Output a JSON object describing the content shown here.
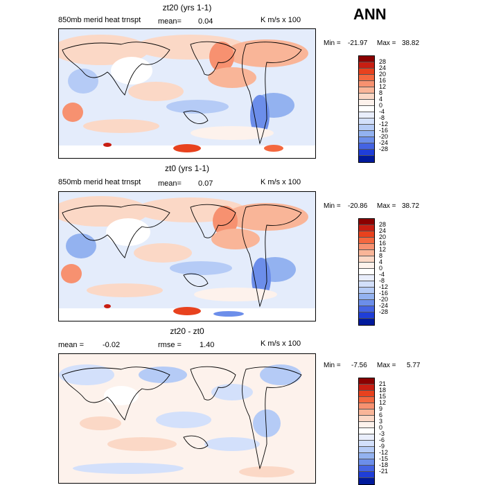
{
  "season": "ANN",
  "colors": {
    "bar28": [
      "#8b0000",
      "#c81e12",
      "#e8421e",
      "#f4683f",
      "#f79170",
      "#f9b598",
      "#fbd8c6",
      "#fdf2ec",
      "#ffffff",
      "#e9eefc",
      "#d3e0fb",
      "#b5cbf6",
      "#93b2f0",
      "#6c8eea",
      "#4463e3",
      "#1f3ed8",
      "#001a9c"
    ],
    "bar21": [
      "#8b0000",
      "#c81e12",
      "#e8421e",
      "#f4683f",
      "#f79170",
      "#f9b598",
      "#fbd8c6",
      "#fdf2ec",
      "#ffffff",
      "#e9eefc",
      "#d3e0fb",
      "#b5cbf6",
      "#93b2f0",
      "#6c8eea",
      "#4463e3",
      "#1f3ed8",
      "#001a9c"
    ]
  },
  "panels": [
    {
      "id": "p1",
      "title": "zt20 (yrs 1-1)",
      "variable": "850mb merid heat trnspt",
      "mean_label": "mean=",
      "mean_value": "0.04",
      "units": "K m/s x 100",
      "min_label": "Min =",
      "min_value": "-21.97",
      "max_label": "Max =",
      "max_value": "38.82",
      "levels": [
        "28",
        "24",
        "20",
        "16",
        "12",
        "8",
        "4",
        "0",
        "-4",
        "-8",
        "-12",
        "-16",
        "-20",
        "-24",
        "-28"
      ]
    },
    {
      "id": "p2",
      "title": "zt0 (yrs 1-1)",
      "variable": "850mb merid heat trnspt",
      "mean_label": "mean=",
      "mean_value": "0.07",
      "units": "K m/s x 100",
      "min_label": "Min =",
      "min_value": "-20.86",
      "max_label": "Max =",
      "max_value": "38.72",
      "levels": [
        "28",
        "24",
        "20",
        "16",
        "12",
        "8",
        "4",
        "0",
        "-4",
        "-8",
        "-12",
        "-16",
        "-20",
        "-24",
        "-28"
      ]
    },
    {
      "id": "p3",
      "title": "zt20 - zt0",
      "mean_label": "mean =",
      "mean_value": "-0.02",
      "rmse_label": "rmse =",
      "rmse_value": "1.40",
      "units": "K m/s x 100",
      "min_label": "Min =",
      "min_value": "-7.56",
      "max_label": "Max =",
      "max_value": "5.77",
      "levels": [
        "21",
        "18",
        "15",
        "12",
        "9",
        "6",
        "3",
        "0",
        "-3",
        "-6",
        "-9",
        "-12",
        "-15",
        "-18",
        "-21"
      ]
    }
  ]
}
